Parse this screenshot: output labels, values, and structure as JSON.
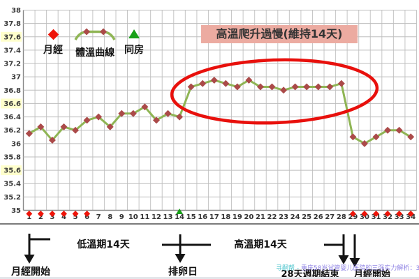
{
  "chart_data": {
    "type": "line",
    "title": "",
    "x": [
      1,
      2,
      3,
      4,
      5,
      6,
      7,
      8,
      9,
      10,
      11,
      12,
      13,
      14,
      15,
      16,
      17,
      18,
      19,
      20,
      21,
      22,
      23,
      24,
      25,
      26,
      27,
      28,
      29,
      30,
      31,
      32,
      33,
      34
    ],
    "series": [
      {
        "name": "體溫曲線",
        "values": [
          36.15,
          36.25,
          36.05,
          36.25,
          36.2,
          36.35,
          36.4,
          36.25,
          36.45,
          36.45,
          36.55,
          36.35,
          36.45,
          36.4,
          36.85,
          36.9,
          36.95,
          36.9,
          36.85,
          36.95,
          36.85,
          36.85,
          36.8,
          36.85,
          36.85,
          36.85,
          36.85,
          36.9,
          36.1,
          36.0,
          36.1,
          36.2,
          36.2,
          36.1
        ]
      }
    ],
    "ylim": [
      35,
      38
    ],
    "ytick_step": 0.2,
    "y_ticks": [
      "38",
      "37.8",
      "37.6",
      "37.4",
      "37.2",
      "37",
      "36.8",
      "36.6",
      "36.4",
      "36.2",
      "36",
      "35.8",
      "35.6",
      "35.4",
      "35.2",
      "35"
    ],
    "highlighted_yticks": [
      37.6,
      36.6,
      35.6
    ],
    "grid": "on",
    "legend_position": "top-left-inside",
    "markers": {
      "menstruation_days": [
        1,
        2,
        3,
        4,
        5,
        6,
        29,
        30,
        31,
        32,
        33,
        34
      ],
      "intercourse_days": [
        14
      ]
    }
  },
  "colors": {
    "curve": "#8fb554",
    "curve_marker": "#ab4a49",
    "menstruation": "#ee1409",
    "intercourse": "#17a017",
    "ellipse": "#e8100c",
    "title_bg": "#ecaba1",
    "tick_highlight": "#ffffcc"
  },
  "legend": {
    "items": [
      {
        "icon": "menstruation-diamond-icon",
        "label": "月經"
      },
      {
        "icon": "temperature-curve-icon",
        "label": "體溫曲線"
      },
      {
        "icon": "intercourse-triangle-icon",
        "label": "同房"
      }
    ]
  },
  "annotation": {
    "title_box": "高溫爬升過慢(維持14天)"
  },
  "timeline": {
    "menses_start_left": "月經開始",
    "low_phase": "低溫期14天",
    "ovulation": "排卵日",
    "high_phase": "高溫期14天",
    "cycle_end": "28天週期結束",
    "menses_start_right": "月經開始"
  },
  "watermark": {
    "prefix": "寻嗣帮 - ",
    "text": "重庆58岁试管婴儿医院的三强实力解析：3"
  }
}
